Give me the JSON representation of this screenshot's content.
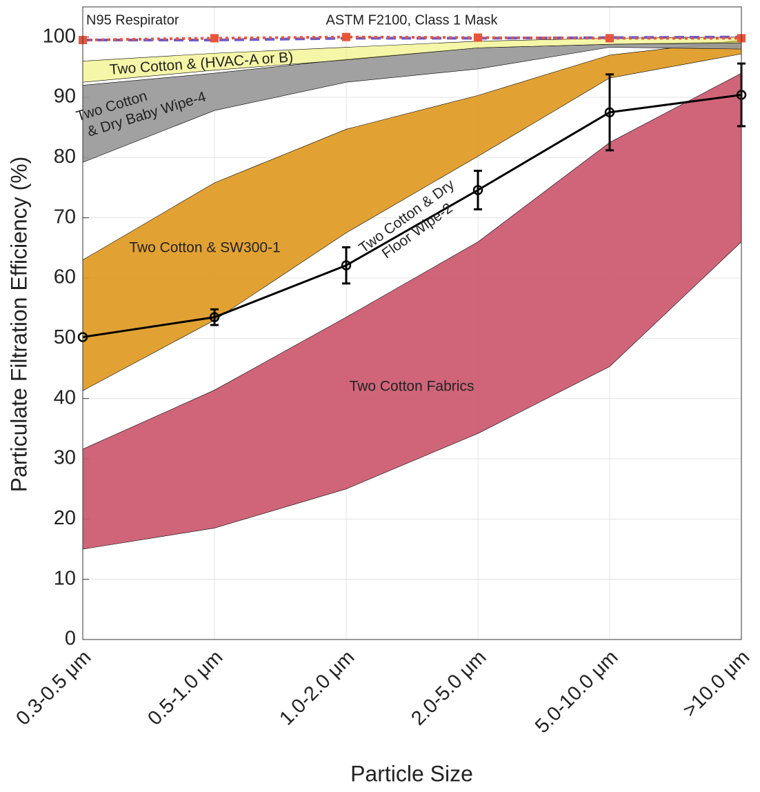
{
  "chart_data": {
    "type": "range",
    "x_label": "Particle Size",
    "y_label": "Particulate Filtration Efficiency (%)",
    "categories": [
      "0.3-0.5 μm",
      "0.5-1.0 μm",
      "1.0-2.0 μm",
      "2.0-5.0 μm",
      "5.0-10.0 μm",
      ">10.0 μm"
    ],
    "ylim": [
      0,
      105
    ],
    "yticks": [
      0,
      10,
      20,
      30,
      40,
      50,
      60,
      70,
      80,
      90,
      100
    ],
    "grid": true,
    "series": [
      {
        "kind": "band",
        "label": [
          "Two Cotton Fabrics"
        ],
        "color": "#cc586f",
        "upper": [
          31.6,
          41.4,
          53.5,
          66,
          82.5,
          94
        ],
        "lower": [
          15,
          18.5,
          25,
          34.2,
          45.3,
          66
        ]
      },
      {
        "kind": "band",
        "label": [
          "Two Cotton & SW300-1"
        ],
        "color": "#e09a22",
        "upper": [
          63,
          75.8,
          84.7,
          90.3,
          97,
          99.5
        ],
        "lower": [
          41.3,
          53,
          67.5,
          80.2,
          93.2,
          97.2
        ]
      },
      {
        "kind": "band",
        "label": [
          "Two Cotton",
          "& Dry Baby Wipe-4"
        ],
        "color": "#999999",
        "upper": [
          92,
          94,
          96.3,
          98.2,
          98.8,
          99.2
        ],
        "lower": [
          79.2,
          87.8,
          92.5,
          94.7,
          98.3,
          98
        ]
      },
      {
        "kind": "band",
        "label": [
          "Two Cotton & (HVAC-A or B)"
        ],
        "color": "#f0f06e",
        "upper": [
          96,
          97.3,
          98.3,
          99.3,
          99.8,
          100
        ],
        "lower": [
          92.5,
          94.5,
          96.2,
          98.2,
          98.8,
          99
        ]
      },
      {
        "kind": "line",
        "label": [
          "Two Cotton & Dry",
          "Floor Wipe-2"
        ],
        "color": "#000000",
        "values": [
          50.2,
          53.5,
          62.1,
          74.6,
          87.5,
          90.4
        ],
        "errors": [
          0,
          1.3,
          3,
          3.2,
          6.3,
          5.2
        ]
      },
      {
        "kind": "dashed",
        "label": [
          "N95 Respirator"
        ],
        "color": "#6a5acd",
        "values": [
          99.5,
          99.5,
          99.8,
          99.8,
          99.9,
          100
        ]
      },
      {
        "kind": "dotted",
        "label": [
          "ASTM F2100, Class 1 Mask"
        ],
        "color": "#e8553a",
        "values": [
          99.5,
          99.8,
          100,
          99.9,
          99.8,
          99.8
        ]
      }
    ]
  }
}
